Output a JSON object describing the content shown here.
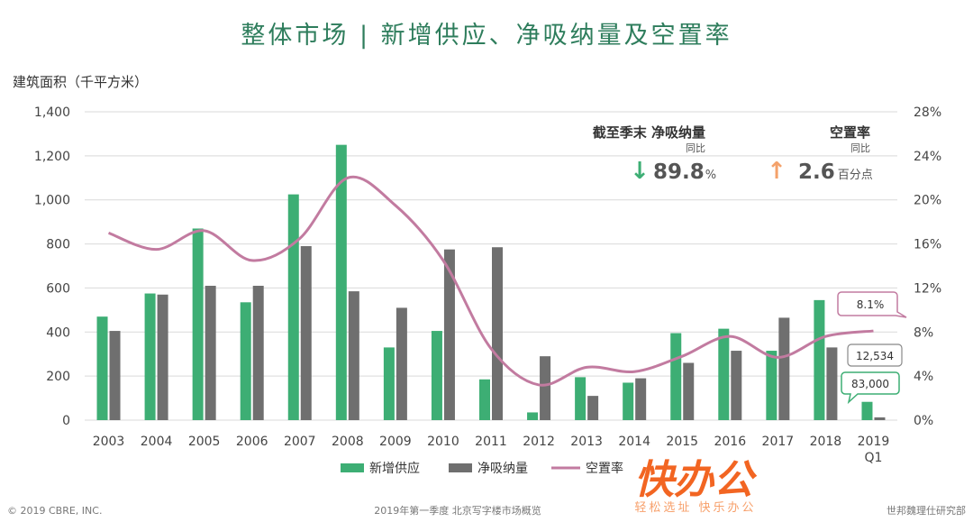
{
  "chart_data": {
    "type": "bar",
    "title": "整体市场 | 新增供应、净吸纳量及空置率",
    "ylabel": "建筑面积（千平方米）",
    "categories": [
      "2003",
      "2004",
      "2005",
      "2006",
      "2007",
      "2008",
      "2009",
      "2010",
      "2011",
      "2012",
      "2013",
      "2014",
      "2015",
      "2016",
      "2017",
      "2018",
      "2019 Q1"
    ],
    "ylim": [
      0,
      1400
    ],
    "yticks": [
      "0",
      "200",
      "400",
      "600",
      "800",
      "1,000",
      "1,200",
      "1,400"
    ],
    "y2lim": [
      0,
      28
    ],
    "y2ticks": [
      "0%",
      "4%",
      "8%",
      "12%",
      "16%",
      "20%",
      "24%",
      "28%"
    ],
    "grid": true,
    "legend_position": "bottom",
    "series": [
      {
        "name": "新增供应",
        "type": "bar",
        "color": "#3dae74",
        "values": [
          470,
          575,
          870,
          535,
          1025,
          1250,
          330,
          405,
          185,
          35,
          195,
          170,
          395,
          415,
          315,
          545,
          83
        ]
      },
      {
        "name": "净吸纳量",
        "type": "bar",
        "color": "#6f6f6f",
        "values": [
          405,
          570,
          610,
          610,
          790,
          585,
          510,
          775,
          785,
          290,
          110,
          190,
          260,
          315,
          465,
          330,
          12.5
        ]
      },
      {
        "name": "空置率",
        "type": "line",
        "axis": "right",
        "color": "#c27ba0",
        "values": [
          17.0,
          15.5,
          17.2,
          14.5,
          16.5,
          22.0,
          19.5,
          14.5,
          6.5,
          3.2,
          4.8,
          4.4,
          5.8,
          7.6,
          5.7,
          7.6,
          8.1
        ]
      }
    ],
    "annotations": {
      "vacancy_q1": "8.1%",
      "absorption_q1": "12,534",
      "supply_q1": "83,000"
    }
  },
  "stats": {
    "absorption": {
      "label": "截至季末 净吸纳量",
      "sub": "同比",
      "arrow": "↓",
      "value": "89.8",
      "unit": "%",
      "arrow_color": "#3dae74"
    },
    "vacancy": {
      "label": "空置率",
      "sub": "同比",
      "arrow": "↑",
      "value": "2.6",
      "unit": "百分点",
      "arrow_color": "#f4a26b"
    }
  },
  "footer": {
    "copyright": "© 2019 CBRE, INC.",
    "center": "2019年第一季度 北京写字楼市场概览",
    "right": "世邦魏理仕研究部"
  },
  "watermark": {
    "main": "快办公",
    "sub": "轻松选址 快乐办公"
  }
}
